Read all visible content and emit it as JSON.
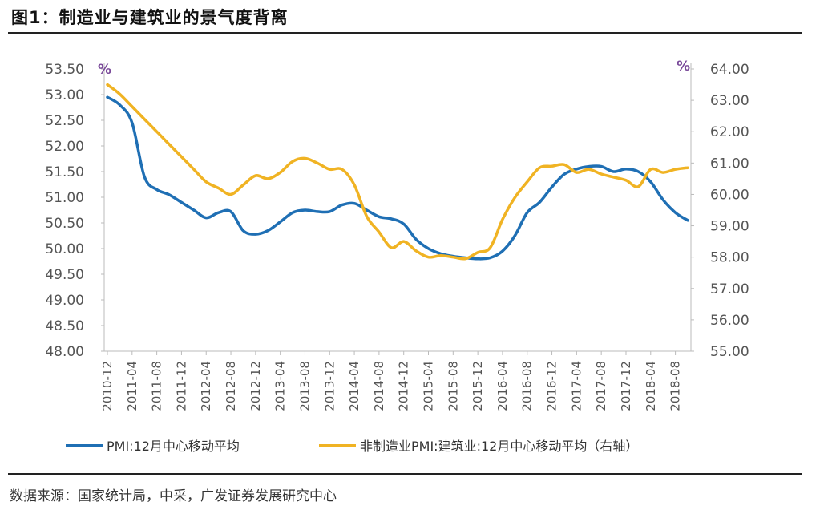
{
  "figure": {
    "title": "图1：制造业与建筑业的景气度背离",
    "source": "数据来源：国家统计局，中采，广发证券发展研究中心"
  },
  "chart_data": {
    "type": "line",
    "title": "图1：制造业与建筑业的景气度背离",
    "left_unit": "%",
    "right_unit": "%",
    "x_tick_labels": [
      "2010-12",
      "2011-04",
      "2011-08",
      "2011-12",
      "2012-04",
      "2012-08",
      "2012-12",
      "2013-04",
      "2013-08",
      "2013-12",
      "2014-04",
      "2014-08",
      "2014-12",
      "2015-04",
      "2015-08",
      "2015-12",
      "2016-04",
      "2016-08",
      "2016-12",
      "2017-04",
      "2017-08",
      "2017-12",
      "2018-04",
      "2018-08"
    ],
    "y_left": {
      "ylim": [
        48.0,
        53.5
      ],
      "ticks": [
        "48.00",
        "48.50",
        "49.00",
        "49.50",
        "50.00",
        "50.50",
        "51.00",
        "51.50",
        "52.00",
        "52.50",
        "53.00",
        "53.50"
      ]
    },
    "y_right": {
      "ylim": [
        55.0,
        64.0
      ],
      "ticks": [
        "55.00",
        "56.00",
        "57.00",
        "58.00",
        "59.00",
        "60.00",
        "61.00",
        "62.00",
        "63.00",
        "64.00"
      ]
    },
    "legend_position": "bottom",
    "series": [
      {
        "name": "PMI:12月中心移动平均",
        "axis": "left",
        "color": "#1f6fb4",
        "x": [
          "2010-12",
          "2011-02",
          "2011-04",
          "2011-06",
          "2011-08",
          "2011-10",
          "2011-12",
          "2012-02",
          "2012-04",
          "2012-06",
          "2012-08",
          "2012-10",
          "2012-12",
          "2013-02",
          "2013-04",
          "2013-06",
          "2013-08",
          "2013-10",
          "2013-12",
          "2014-02",
          "2014-04",
          "2014-06",
          "2014-08",
          "2014-10",
          "2014-12",
          "2015-02",
          "2015-04",
          "2015-06",
          "2015-08",
          "2015-10",
          "2015-12",
          "2016-02",
          "2016-04",
          "2016-06",
          "2016-08",
          "2016-10",
          "2016-12",
          "2017-02",
          "2017-04",
          "2017-06",
          "2017-08",
          "2017-10",
          "2017-12",
          "2018-02",
          "2018-04",
          "2018-06",
          "2018-08",
          "2018-10"
        ],
        "values": [
          52.95,
          52.8,
          52.45,
          51.4,
          51.15,
          51.05,
          50.9,
          50.75,
          50.6,
          50.7,
          50.72,
          50.35,
          50.28,
          50.35,
          50.52,
          50.7,
          50.75,
          50.72,
          50.72,
          50.85,
          50.88,
          50.75,
          50.62,
          50.58,
          50.48,
          50.18,
          50.0,
          49.9,
          49.85,
          49.82,
          49.8,
          49.82,
          49.95,
          50.25,
          50.7,
          50.9,
          51.2,
          51.45,
          51.55,
          51.6,
          51.6,
          51.5,
          51.55,
          51.5,
          51.3,
          50.95,
          50.7,
          50.55
        ]
      },
      {
        "name": "非制造业PMI:建筑业:12月中心移动平均（右轴）",
        "axis": "right",
        "color": "#f0b323",
        "x": [
          "2010-12",
          "2011-02",
          "2011-04",
          "2011-06",
          "2011-08",
          "2011-10",
          "2011-12",
          "2012-02",
          "2012-04",
          "2012-06",
          "2012-08",
          "2012-10",
          "2012-12",
          "2013-02",
          "2013-04",
          "2013-06",
          "2013-08",
          "2013-10",
          "2013-12",
          "2014-02",
          "2014-04",
          "2014-06",
          "2014-08",
          "2014-10",
          "2014-12",
          "2015-02",
          "2015-04",
          "2015-06",
          "2015-08",
          "2015-10",
          "2015-12",
          "2016-02",
          "2016-04",
          "2016-06",
          "2016-08",
          "2016-10",
          "2016-12",
          "2017-02",
          "2017-04",
          "2017-06",
          "2017-08",
          "2017-10",
          "2017-12",
          "2018-02",
          "2018-04",
          "2018-06",
          "2018-08",
          "2018-10"
        ],
        "values": [
          63.5,
          63.2,
          62.8,
          62.4,
          62.0,
          61.6,
          61.2,
          60.8,
          60.4,
          60.2,
          60.0,
          60.3,
          60.6,
          60.5,
          60.7,
          61.05,
          61.15,
          61.0,
          60.8,
          60.8,
          60.3,
          59.3,
          58.8,
          58.3,
          58.5,
          58.2,
          58.0,
          58.05,
          58.0,
          57.95,
          58.15,
          58.3,
          59.2,
          59.9,
          60.4,
          60.85,
          60.9,
          60.95,
          60.7,
          60.8,
          60.65,
          60.55,
          60.45,
          60.25,
          60.8,
          60.7,
          60.8,
          60.85
        ]
      }
    ]
  }
}
